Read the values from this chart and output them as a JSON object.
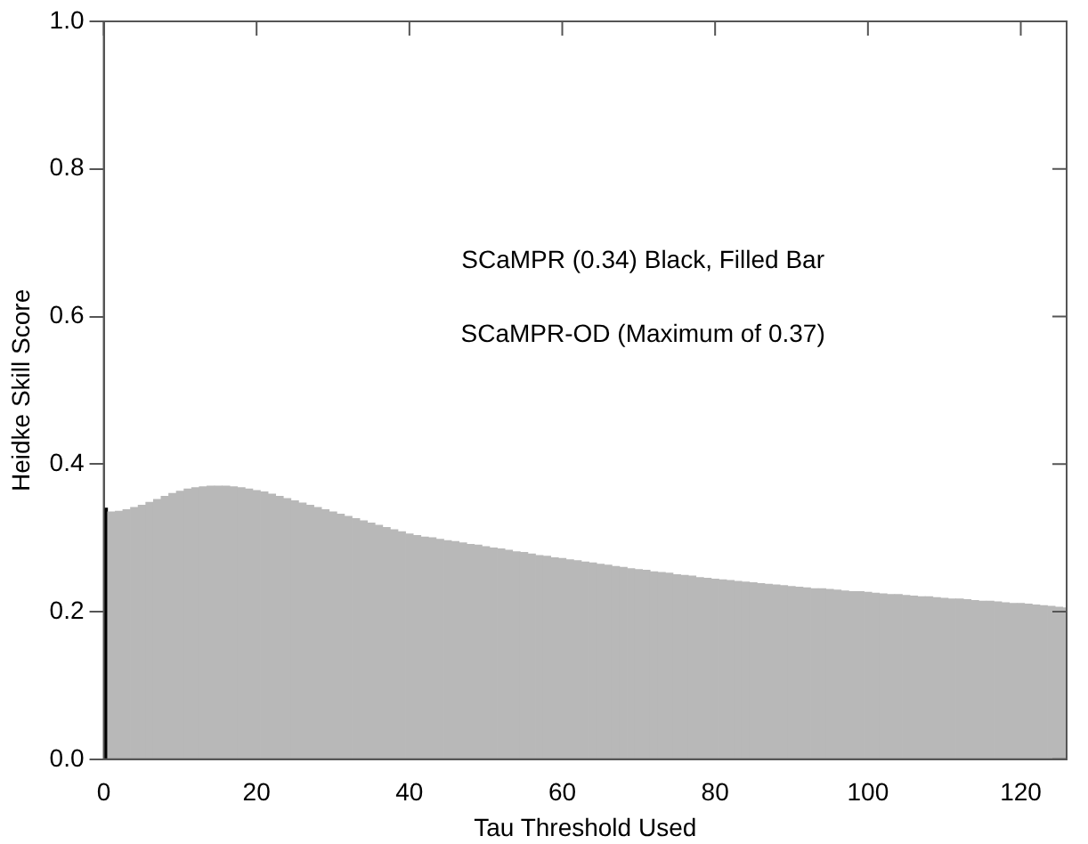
{
  "chart_data": {
    "type": "bar",
    "xlabel": "Tau Threshold Used",
    "ylabel": "Heidke Skill Score",
    "annotations": [
      "SCaMPR (0.34) Black, Filled Bar",
      "SCaMPR-OD (Maximum of 0.37)"
    ],
    "x": [
      0,
      1,
      2,
      3,
      4,
      5,
      6,
      7,
      8,
      9,
      10,
      11,
      12,
      13,
      14,
      15,
      16,
      17,
      18,
      19,
      20,
      21,
      22,
      23,
      24,
      25,
      26,
      27,
      28,
      29,
      30,
      31,
      32,
      33,
      34,
      35,
      36,
      37,
      38,
      39,
      40,
      41,
      42,
      43,
      44,
      45,
      46,
      47,
      48,
      49,
      50,
      51,
      52,
      53,
      54,
      55,
      56,
      57,
      58,
      59,
      60,
      61,
      62,
      63,
      64,
      65,
      66,
      67,
      68,
      69,
      70,
      71,
      72,
      73,
      74,
      75,
      76,
      77,
      78,
      79,
      80,
      81,
      82,
      83,
      84,
      85,
      86,
      87,
      88,
      89,
      90,
      91,
      92,
      93,
      94,
      95,
      96,
      97,
      98,
      99,
      100,
      101,
      102,
      103,
      104,
      105,
      106,
      107,
      108,
      109,
      110,
      111,
      112,
      113,
      114,
      115,
      116,
      117,
      118,
      119,
      120,
      121,
      122,
      123,
      124,
      125,
      126
    ],
    "values": [
      0.34,
      0.335,
      0.336,
      0.338,
      0.341,
      0.344,
      0.348,
      0.352,
      0.356,
      0.36,
      0.363,
      0.366,
      0.368,
      0.369,
      0.37,
      0.37,
      0.37,
      0.369,
      0.368,
      0.366,
      0.364,
      0.362,
      0.359,
      0.356,
      0.353,
      0.35,
      0.347,
      0.344,
      0.341,
      0.338,
      0.335,
      0.332,
      0.329,
      0.326,
      0.323,
      0.32,
      0.317,
      0.314,
      0.311,
      0.308,
      0.305,
      0.303,
      0.301,
      0.3,
      0.298,
      0.296,
      0.295,
      0.293,
      0.291,
      0.29,
      0.288,
      0.286,
      0.285,
      0.283,
      0.281,
      0.28,
      0.278,
      0.276,
      0.275,
      0.273,
      0.272,
      0.27,
      0.269,
      0.267,
      0.266,
      0.264,
      0.263,
      0.261,
      0.26,
      0.258,
      0.257,
      0.256,
      0.254,
      0.253,
      0.252,
      0.25,
      0.249,
      0.248,
      0.246,
      0.245,
      0.244,
      0.243,
      0.242,
      0.241,
      0.24,
      0.239,
      0.238,
      0.237,
      0.236,
      0.235,
      0.234,
      0.233,
      0.232,
      0.231,
      0.231,
      0.23,
      0.229,
      0.228,
      0.227,
      0.227,
      0.226,
      0.225,
      0.224,
      0.223,
      0.223,
      0.222,
      0.221,
      0.22,
      0.22,
      0.219,
      0.218,
      0.217,
      0.217,
      0.216,
      0.215,
      0.214,
      0.214,
      0.213,
      0.212,
      0.211,
      0.211,
      0.21,
      0.209,
      0.208,
      0.207,
      0.206,
      0.205
    ],
    "colors": [
      "#000000",
      "#b8b8b8",
      "#b8b8b8",
      "#b8b8b8",
      "#b8b8b8",
      "#b8b8b8",
      "#b8b8b8",
      "#b8b8b8",
      "#b8b8b8",
      "#b8b8b8",
      "#b8b8b8",
      "#b8b8b8",
      "#b8b8b8",
      "#b8b8b8",
      "#b8b8b8",
      "#b8b8b8",
      "#b8b8b8",
      "#b8b8b8",
      "#b8b8b8",
      "#b8b8b8",
      "#b8b8b8",
      "#b8b8b8",
      "#b8b8b8",
      "#b8b8b8",
      "#b8b8b8",
      "#b8b8b8",
      "#b8b8b8",
      "#b8b8b8",
      "#b8b8b8",
      "#b8b8b8",
      "#b8b8b8",
      "#b8b8b8",
      "#b8b8b8",
      "#b8b8b8",
      "#b8b8b8",
      "#b8b8b8",
      "#b8b8b8",
      "#b8b8b8",
      "#b8b8b8",
      "#b8b8b8",
      "#b8b8b8",
      "#b8b8b8",
      "#b8b8b8",
      "#b8b8b8",
      "#b8b8b8",
      "#b8b8b8",
      "#b8b8b8",
      "#b8b8b8",
      "#b8b8b8",
      "#b8b8b8",
      "#b8b8b8",
      "#b8b8b8",
      "#b8b8b8",
      "#b8b8b8",
      "#b8b8b8",
      "#b8b8b8",
      "#b8b8b8",
      "#b8b8b8",
      "#b8b8b8",
      "#b8b8b8",
      "#b8b8b8",
      "#b8b8b8",
      "#b8b8b8",
      "#b8b8b8",
      "#b8b8b8",
      "#b8b8b8",
      "#b8b8b8",
      "#b8b8b8",
      "#b8b8b8",
      "#b8b8b8",
      "#b8b8b8",
      "#b8b8b8",
      "#b8b8b8",
      "#b8b8b8",
      "#b8b8b8",
      "#b8b8b8",
      "#b8b8b8",
      "#b8b8b8",
      "#b8b8b8",
      "#b8b8b8",
      "#b8b8b8",
      "#b8b8b8",
      "#b8b8b8",
      "#b8b8b8",
      "#b8b8b8",
      "#b8b8b8",
      "#b8b8b8",
      "#b8b8b8",
      "#b8b8b8",
      "#b8b8b8",
      "#b8b8b8",
      "#b8b8b8",
      "#b8b8b8",
      "#b8b8b8",
      "#b8b8b8",
      "#b8b8b8",
      "#b8b8b8",
      "#b8b8b8",
      "#b8b8b8",
      "#b8b8b8",
      "#b8b8b8",
      "#b8b8b8",
      "#b8b8b8",
      "#b8b8b8",
      "#b8b8b8",
      "#b8b8b8",
      "#b8b8b8",
      "#b8b8b8",
      "#b8b8b8",
      "#b8b8b8",
      "#b8b8b8",
      "#b8b8b8",
      "#b8b8b8",
      "#b8b8b8",
      "#b8b8b8",
      "#b8b8b8",
      "#b8b8b8",
      "#b8b8b8",
      "#b8b8b8",
      "#b8b8b8",
      "#b8b8b8",
      "#b8b8b8",
      "#b8b8b8",
      "#b8b8b8",
      "#b8b8b8",
      "#b8b8b8",
      "#b8b8b8"
    ],
    "xlim": [
      0,
      126
    ],
    "xticks": [
      0,
      20,
      40,
      60,
      80,
      100,
      120
    ],
    "ylim": [
      0,
      1
    ],
    "yticks": [
      {
        "value": 0,
        "label": "0.0"
      },
      {
        "value": 0.2,
        "label": "0.2"
      },
      {
        "value": 0.4,
        "label": "0.4"
      },
      {
        "value": 0.6,
        "label": "0.6"
      },
      {
        "value": 0.8,
        "label": "0.8"
      },
      {
        "value": 1,
        "label": "1.0"
      }
    ],
    "grid": false,
    "legend": false
  }
}
